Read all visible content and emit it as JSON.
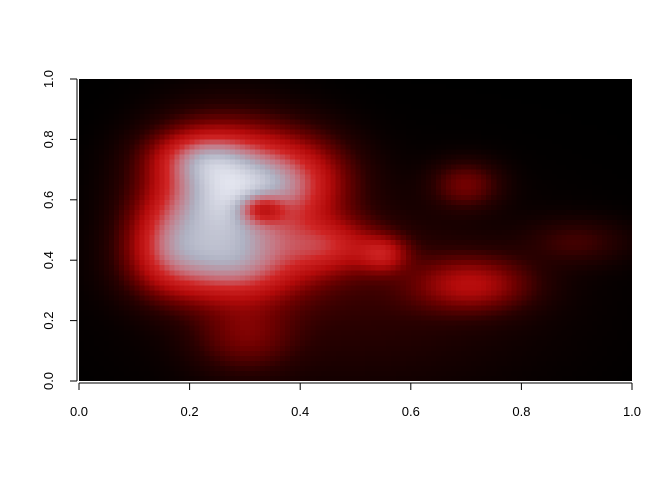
{
  "chart_data": {
    "type": "heatmap",
    "title": "",
    "xlabel": "",
    "ylabel": "",
    "xlim": [
      0,
      1
    ],
    "ylim": [
      0,
      1
    ],
    "x_ticks": [
      {
        "value": 0.0,
        "label": "0.0"
      },
      {
        "value": 0.2,
        "label": "0.2"
      },
      {
        "value": 0.4,
        "label": "0.4"
      },
      {
        "value": 0.6,
        "label": "0.6"
      },
      {
        "value": 0.8,
        "label": "0.8"
      },
      {
        "value": 1.0,
        "label": "1.0"
      }
    ],
    "y_ticks": [
      {
        "value": 0.0,
        "label": "0.0"
      },
      {
        "value": 0.2,
        "label": "0.2"
      },
      {
        "value": 0.4,
        "label": "0.4"
      },
      {
        "value": 0.6,
        "label": "0.6"
      },
      {
        "value": 0.8,
        "label": "0.8"
      },
      {
        "value": 1.0,
        "label": "1.0"
      }
    ],
    "grid": false,
    "legend": "none",
    "colormap": [
      "#000000",
      "#2a0000",
      "#6e0000",
      "#b40a0a",
      "#cf2424",
      "#c7737f",
      "#aeb1c2",
      "#e2e4ee"
    ],
    "density_components": [
      {
        "x": 0.26,
        "y": 0.6,
        "sx": 0.08,
        "sy": 0.14,
        "w": 1.0
      },
      {
        "x": 0.38,
        "y": 0.66,
        "sx": 0.07,
        "sy": 0.1,
        "w": 0.55
      },
      {
        "x": 0.22,
        "y": 0.74,
        "sx": 0.06,
        "sy": 0.06,
        "w": 0.4
      },
      {
        "x": 0.28,
        "y": 0.38,
        "sx": 0.09,
        "sy": 0.08,
        "w": 0.55
      },
      {
        "x": 0.16,
        "y": 0.45,
        "sx": 0.05,
        "sy": 0.1,
        "w": 0.4
      },
      {
        "x": 0.45,
        "y": 0.45,
        "sx": 0.06,
        "sy": 0.06,
        "w": 0.4
      },
      {
        "x": 0.55,
        "y": 0.42,
        "sx": 0.03,
        "sy": 0.04,
        "w": 0.35
      },
      {
        "x": 0.71,
        "y": 0.32,
        "sx": 0.07,
        "sy": 0.06,
        "w": 0.35
      },
      {
        "x": 0.7,
        "y": 0.65,
        "sx": 0.04,
        "sy": 0.05,
        "w": 0.22
      },
      {
        "x": 0.9,
        "y": 0.46,
        "sx": 0.06,
        "sy": 0.05,
        "w": 0.12
      },
      {
        "x": 0.3,
        "y": 0.15,
        "sx": 0.06,
        "sy": 0.08,
        "w": 0.2
      },
      {
        "x": 0.5,
        "y": 0.3,
        "sx": 0.2,
        "sy": 0.2,
        "w": 0.1
      },
      {
        "x": 0.33,
        "y": 0.57,
        "sx": 0.03,
        "sy": 0.035,
        "w": -0.55
      }
    ]
  }
}
